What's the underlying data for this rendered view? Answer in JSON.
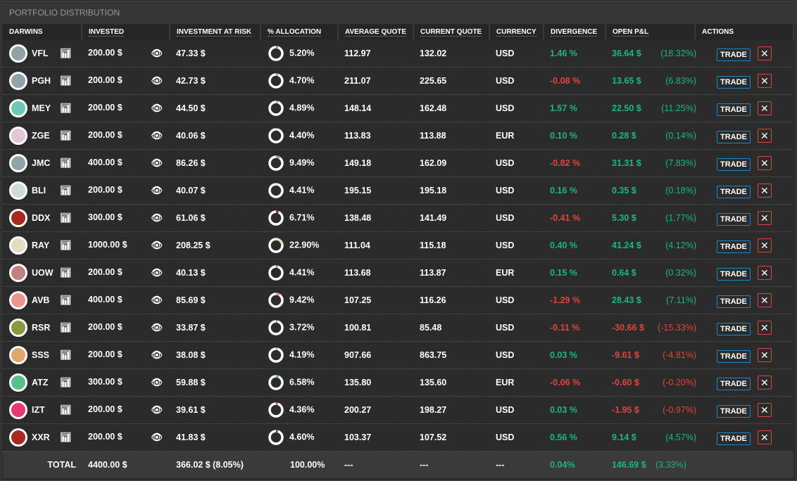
{
  "title": "PORTFOLIO DISTRIBUTION",
  "columns": [
    "DARWINS",
    "INVESTED",
    "INVESTMENT AT RISK",
    "% ALLOCATION",
    "AVERAGE QUOTE",
    "CURRENT QUOTE",
    "CURRENCY",
    "DIVERGENCE",
    "OPEN P&L",
    "ACTIONS"
  ],
  "trade_label": "TRADE",
  "remove_label": "✕",
  "rows": [
    {
      "name": "VFL",
      "color": "#8fa3a8",
      "invested": "200.00 $",
      "risk": "47.33 $",
      "alloc": "5.20%",
      "alloc_pct": 5.2,
      "avg": "112.97",
      "cur": "132.02",
      "ccy": "USD",
      "div": "1.46 %",
      "div_pos": true,
      "pnl": "36.64 $",
      "pnl_pct": "(18.32%)",
      "pnl_pos": true
    },
    {
      "name": "PGH",
      "color": "#8fa3a8",
      "invested": "200.00 $",
      "risk": "42.73 $",
      "alloc": "4.70%",
      "alloc_pct": 4.7,
      "avg": "211.07",
      "cur": "225.65",
      "ccy": "USD",
      "div": "-0.08 %",
      "div_pos": false,
      "pnl": "13.65 $",
      "pnl_pct": "(6.83%)",
      "pnl_pos": true
    },
    {
      "name": "MEY",
      "color": "#6cc9b8",
      "invested": "200.00 $",
      "risk": "44.50 $",
      "alloc": "4.89%",
      "alloc_pct": 4.89,
      "avg": "148.14",
      "cur": "162.48",
      "ccy": "USD",
      "div": "1.57 %",
      "div_pos": true,
      "pnl": "22.50 $",
      "pnl_pct": "(11.25%)",
      "pnl_pos": true
    },
    {
      "name": "ZGE",
      "color": "#e4c6d6",
      "invested": "200.00 $",
      "risk": "40.06 $",
      "alloc": "4.40%",
      "alloc_pct": 4.4,
      "avg": "113.83",
      "cur": "113.88",
      "ccy": "EUR",
      "div": "0.10 %",
      "div_pos": true,
      "pnl": "0.28 $",
      "pnl_pct": "(0.14%)",
      "pnl_pos": true
    },
    {
      "name": "JMC",
      "color": "#8fa3a8",
      "invested": "400.00 $",
      "risk": "86.26 $",
      "alloc": "9.49%",
      "alloc_pct": 9.49,
      "avg": "149.18",
      "cur": "162.09",
      "ccy": "USD",
      "div": "-0.82 %",
      "div_pos": false,
      "pnl": "31.31 $",
      "pnl_pct": "(7.83%)",
      "pnl_pos": true
    },
    {
      "name": "BLI",
      "color": "#d0dbe0",
      "invested": "200.00 $",
      "risk": "40.07 $",
      "alloc": "4.41%",
      "alloc_pct": 4.41,
      "avg": "195.15",
      "cur": "195.18",
      "ccy": "USD",
      "div": "0.16 %",
      "div_pos": true,
      "pnl": "0.35 $",
      "pnl_pct": "(0.18%)",
      "pnl_pos": true
    },
    {
      "name": "DDX",
      "color": "#a8291f",
      "invested": "300.00 $",
      "risk": "61.06 $",
      "alloc": "6.71%",
      "alloc_pct": 6.71,
      "avg": "138.48",
      "cur": "141.49",
      "ccy": "USD",
      "div": "-0.41 %",
      "div_pos": false,
      "pnl": "5.30 $",
      "pnl_pct": "(1.77%)",
      "pnl_pos": true
    },
    {
      "name": "RAY",
      "color": "#e6dcc0",
      "invested": "1000.00 $",
      "risk": "208.25 $",
      "alloc": "22.90%",
      "alloc_pct": 22.9,
      "avg": "111.04",
      "cur": "115.18",
      "ccy": "USD",
      "div": "0.40 %",
      "div_pos": true,
      "pnl": "41.24 $",
      "pnl_pct": "(4.12%)",
      "pnl_pos": true
    },
    {
      "name": "UOW",
      "color": "#c28080",
      "invested": "200.00 $",
      "risk": "40.13 $",
      "alloc": "4.41%",
      "alloc_pct": 4.41,
      "avg": "113.68",
      "cur": "113.87",
      "ccy": "EUR",
      "div": "0.15 %",
      "div_pos": true,
      "pnl": "0.64 $",
      "pnl_pct": "(0.32%)",
      "pnl_pos": true
    },
    {
      "name": "AVB",
      "color": "#f0958a",
      "invested": "400.00 $",
      "risk": "85.69 $",
      "alloc": "9.42%",
      "alloc_pct": 9.42,
      "avg": "107.25",
      "cur": "116.26",
      "ccy": "USD",
      "div": "-1.29 %",
      "div_pos": false,
      "pnl": "28.43 $",
      "pnl_pct": "(7.11%)",
      "pnl_pos": true
    },
    {
      "name": "RSR",
      "color": "#8a9a40",
      "invested": "200.00 $",
      "risk": "33.87 $",
      "alloc": "3.72%",
      "alloc_pct": 3.72,
      "avg": "100.81",
      "cur": "85.48",
      "ccy": "USD",
      "div": "-0.11 %",
      "div_pos": false,
      "pnl": "-30.66 $",
      "pnl_pct": "(-15.33%)",
      "pnl_pos": false
    },
    {
      "name": "SSS",
      "color": "#e0a66a",
      "invested": "200.00 $",
      "risk": "38.08 $",
      "alloc": "4.19%",
      "alloc_pct": 4.19,
      "avg": "907.66",
      "cur": "863.75",
      "ccy": "USD",
      "div": "0.03 %",
      "div_pos": true,
      "pnl": "-9.61 $",
      "pnl_pct": "(-4.81%)",
      "pnl_pos": false
    },
    {
      "name": "ATZ",
      "color": "#57c08a",
      "invested": "300.00 $",
      "risk": "59.88 $",
      "alloc": "6.58%",
      "alloc_pct": 6.58,
      "avg": "135.80",
      "cur": "135.60",
      "ccy": "EUR",
      "div": "-0.06 %",
      "div_pos": false,
      "pnl": "-0.60 $",
      "pnl_pct": "(-0.20%)",
      "pnl_pos": false
    },
    {
      "name": "IZT",
      "color": "#e83a70",
      "invested": "200.00 $",
      "risk": "39.61 $",
      "alloc": "4.36%",
      "alloc_pct": 4.36,
      "avg": "200.27",
      "cur": "198.27",
      "ccy": "USD",
      "div": "0.03 %",
      "div_pos": true,
      "pnl": "-1.95 $",
      "pnl_pct": "(-0.97%)",
      "pnl_pos": false
    },
    {
      "name": "XXR",
      "color": "#a8291f",
      "invested": "200.00 $",
      "risk": "41.83 $",
      "alloc": "4.60%",
      "alloc_pct": 4.6,
      "avg": "103.37",
      "cur": "107.52",
      "ccy": "USD",
      "div": "0.56 %",
      "div_pos": true,
      "pnl": "9.14 $",
      "pnl_pct": "(4.57%)",
      "pnl_pos": true
    }
  ],
  "total": {
    "label": "TOTAL",
    "invested": "4400.00 $",
    "risk": "366.02 $ (8.05%)",
    "alloc": "100.00%",
    "avg": "---",
    "cur": "---",
    "ccy": "---",
    "div": "0.04%",
    "pnl": "146.69 $",
    "pnl_pct": "(3.33%)"
  }
}
